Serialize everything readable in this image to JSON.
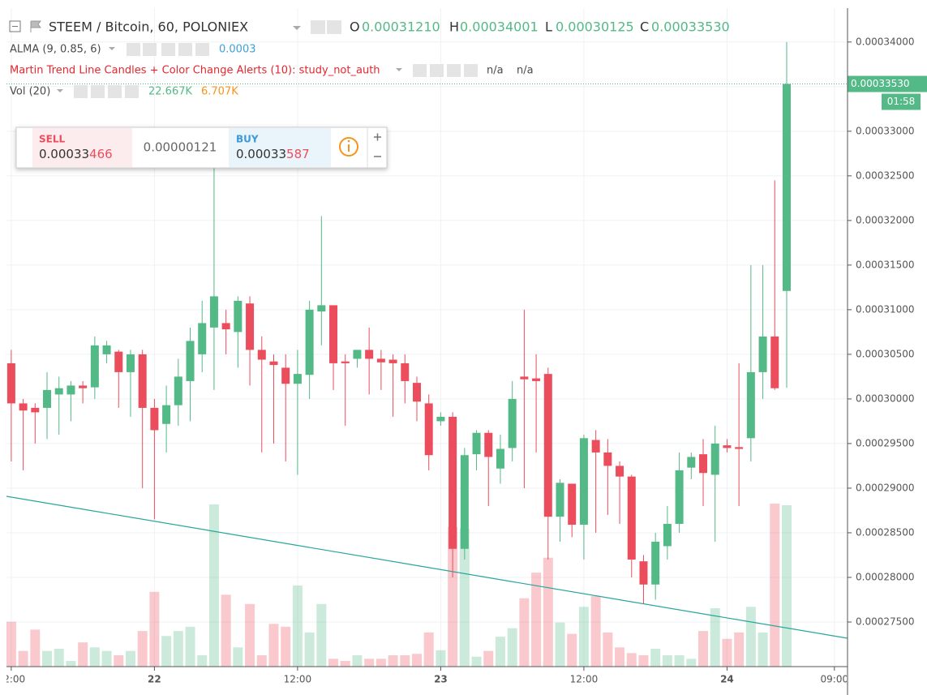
{
  "header": {
    "title": "STEEM / Bitcoin, 60, POLONIEX",
    "open_label": "O",
    "open": "0.00031210",
    "high_label": "H",
    "high": "0.00034001",
    "low_label": "L",
    "low": "0.00030125",
    "close_label": "C",
    "close": "0.00033530"
  },
  "indicators": [
    {
      "name": "ALMA (9, 0.85, 6)",
      "values": [
        "0.0003"
      ]
    },
    {
      "name": "Martin Trend Line Candles + Color Change Alerts (10): study_not_auth",
      "values": [
        "n/a",
        "n/a"
      ]
    },
    {
      "name": "Vol (20)",
      "values": [
        "22.667K",
        "6.707K"
      ]
    }
  ],
  "order_widget": {
    "sell_label": "SELL",
    "sell_price": [
      "0.00033",
      "466"
    ],
    "spread": "0.00000121",
    "buy_label": "BUY",
    "buy_price": [
      "0.00033",
      "587"
    ]
  },
  "price_tag": "0.00033530",
  "countdown": "01:58",
  "chart_data": {
    "type": "candlestick",
    "up_color": "#53b987",
    "down_color": "#eb4d5c",
    "grid": true,
    "x": [
      -12,
      -11,
      -10,
      -9,
      -8,
      -7,
      -6,
      -5,
      -4,
      -3,
      -2,
      -1,
      0,
      1,
      2,
      3,
      4,
      5,
      6,
      7,
      8,
      9,
      10,
      11,
      12,
      13,
      14,
      15,
      16,
      17,
      18,
      19,
      20,
      21,
      22,
      23,
      24,
      25,
      26,
      27,
      28,
      29,
      30,
      31,
      32,
      33,
      34,
      35,
      36,
      37,
      38,
      39,
      40,
      41,
      42,
      43,
      44,
      45,
      46,
      47,
      48,
      49,
      50,
      51,
      52,
      53
    ],
    "open": [
      0.000304,
      0.0002995,
      0.000299,
      0.000299,
      0.0003005,
      0.0003005,
      0.0003015,
      0.0003013,
      0.000305,
      0.0003053,
      0.000303,
      0.000305,
      0.000299,
      0.0002972,
      0.0002993,
      0.000302,
      0.000305,
      0.000308,
      0.0003085,
      0.0003075,
      0.0003107,
      0.0003055,
      0.0003042,
      0.0003035,
      0.0003017,
      0.0003027,
      0.0003098,
      0.0003105,
      0.0003042,
      0.0003045,
      0.0003055,
      0.0003045,
      0.0003044,
      0.000304,
      0.0003018,
      0.0002995,
      0.0002975,
      0.000298,
      0.0002832,
      0.0002938,
      0.0002962,
      0.0002922,
      0.0002945,
      0.0003025,
      0.0003023,
      0.0003028,
      0.0002868,
      0.0002905,
      0.0002859,
      0.0002954,
      0.000294,
      0.0002925,
      0.0002913,
      0.0002818,
      0.0002792,
      0.0002835,
      0.000286,
      0.0002923,
      0.0002938,
      0.0002915,
      0.0002948,
      0.0002946,
      0.0002956,
      0.000303,
      0.000307,
      0.0003121
    ],
    "high": [
      0.0003055,
      0.0003,
      0.0002995,
      0.000303,
      0.0003025,
      0.000302,
      0.000302,
      0.000307,
      0.0003065,
      0.0003055,
      0.0003055,
      0.0003055,
      0.0003,
      0.0003015,
      0.0003045,
      0.000308,
      0.000311,
      0.000326,
      0.00031,
      0.0003115,
      0.0003115,
      0.000307,
      0.000305,
      0.000305,
      0.0003055,
      0.000311,
      0.0003205,
      0.0003105,
      0.000305,
      0.0003055,
      0.000308,
      0.0003055,
      0.000305,
      0.000305,
      0.0003025,
      0.0003005,
      0.0002985,
      0.0002985,
      0.0002945,
      0.0002965,
      0.0002965,
      0.000296,
      0.000302,
      0.00031,
      0.000305,
      0.0003035,
      0.000291,
      0.0002905,
      0.000296,
      0.0002965,
      0.0002955,
      0.000293,
      0.0002915,
      0.0002825,
      0.000285,
      0.000288,
      0.000294,
      0.000294,
      0.0002955,
      0.000297,
      0.0002955,
      0.000304,
      0.000315,
      0.000315,
      0.0003245,
      0.00034001
    ],
    "low": [
      0.000293,
      0.000292,
      0.000295,
      0.0002955,
      0.000296,
      0.0002975,
      0.0002995,
      0.0003,
      0.000304,
      0.000299,
      0.000298,
      0.00029,
      0.0002865,
      0.000294,
      0.000297,
      0.0002975,
      0.000303,
      0.000301,
      0.000305,
      0.0003035,
      0.0003015,
      0.000294,
      0.000295,
      0.000293,
      0.0002915,
      0.0003,
      0.000306,
      0.000301,
      0.000297,
      0.0003035,
      0.0003005,
      0.000301,
      0.000298,
      0.0002995,
      0.0002975,
      0.000292,
      0.000297,
      0.00028,
      0.000282,
      0.000292,
      0.000288,
      0.0002905,
      0.000293,
      0.00029,
      0.000294,
      0.000282,
      0.000284,
      0.0002845,
      0.000282,
      0.000285,
      0.000287,
      0.000286,
      0.00028,
      0.000277,
      0.0002775,
      0.000282,
      0.000285,
      0.000291,
      0.000288,
      0.000284,
      0.000294,
      0.000288,
      0.000293,
      0.0003,
      0.000301,
      0.00030125
    ],
    "close": [
      0.0002995,
      0.0002987,
      0.0002985,
      0.000301,
      0.0003012,
      0.0003015,
      0.0003012,
      0.000306,
      0.000306,
      0.000303,
      0.000305,
      0.000299,
      0.0002965,
      0.0002993,
      0.0003025,
      0.0003065,
      0.0003085,
      0.0003115,
      0.0003078,
      0.000311,
      0.0003055,
      0.0003044,
      0.0003038,
      0.0003017,
      0.0003028,
      0.00031,
      0.0003105,
      0.000304,
      0.000304,
      0.0003055,
      0.0003045,
      0.0003041,
      0.000304,
      0.000302,
      0.0002997,
      0.0002937,
      0.000298,
      0.0002832,
      0.0002937,
      0.0002962,
      0.0002935,
      0.0002944,
      0.0003,
      0.0003022,
      0.000302,
      0.0002868,
      0.0002906,
      0.0002859,
      0.0002956,
      0.000294,
      0.0002925,
      0.0002913,
      0.000282,
      0.0002792,
      0.000284,
      0.000286,
      0.000292,
      0.0002935,
      0.0002917,
      0.000295,
      0.0002945,
      0.0002944,
      0.000303,
      0.000307,
      0.0003012,
      0.0003353
    ],
    "volume": [
      6.3,
      2.2,
      5.2,
      2.2,
      2.5,
      0.8,
      3.4,
      2.7,
      2.2,
      1.6,
      2.2,
      5.0,
      10.5,
      4.3,
      5.0,
      5.6,
      1.6,
      22.8,
      10.1,
      2.7,
      8.8,
      1.6,
      6.0,
      5.6,
      11.4,
      4.8,
      8.8,
      1.1,
      0.8,
      1.6,
      1.1,
      1.1,
      1.6,
      1.6,
      1.8,
      4.8,
      2.3,
      19.6,
      19.4,
      1.4,
      2.2,
      4.2,
      5.4,
      9.6,
      13.2,
      15.3,
      6.2,
      4.6,
      8.4,
      9.9,
      4.8,
      2.7,
      1.9,
      1.6,
      2.5,
      1.6,
      1.6,
      1.1,
      5.0,
      8.2,
      3.9,
      4.8,
      8.4,
      4.8,
      22.9,
      22.667
    ],
    "volume_ylim": [
      0,
      92.5
    ],
    "trend_line": {
      "color": "#26a69a",
      "x": [
        -12.4,
        58.1
      ],
      "values": [
        0.00028909,
        0.00027318
      ]
    },
    "xlim": [
      -12.4,
      58.1
    ],
    "xticks": [
      {
        "value": -12,
        "label": "12:00"
      },
      {
        "value": 0,
        "label": "22"
      },
      {
        "value": 12,
        "label": "12:00"
      },
      {
        "value": 24,
        "label": "23"
      },
      {
        "value": 36,
        "label": "12:00"
      },
      {
        "value": 48,
        "label": "24"
      },
      {
        "value": 57,
        "label": "09:00"
      }
    ],
    "ylim": [
      0.00027,
      0.0003438
    ],
    "yticks": [
      {
        "value": 0.00034,
        "label": "0.00034000"
      },
      {
        "value": 0.000335,
        "label": "0.00033500"
      },
      {
        "value": 0.00033,
        "label": "0.00033000"
      },
      {
        "value": 0.000325,
        "label": "0.00032500"
      },
      {
        "value": 0.00032,
        "label": "0.00032000"
      },
      {
        "value": 0.000315,
        "label": "0.00031500"
      },
      {
        "value": 0.00031,
        "label": "0.00031000"
      },
      {
        "value": 0.000305,
        "label": "0.00030500"
      },
      {
        "value": 0.0003,
        "label": "0.00030000"
      },
      {
        "value": 0.000295,
        "label": "0.00029500"
      },
      {
        "value": 0.00029,
        "label": "0.00029000"
      },
      {
        "value": 0.000285,
        "label": "0.00028500"
      },
      {
        "value": 0.00028,
        "label": "0.00028000"
      },
      {
        "value": 0.000275,
        "label": "0.00027500"
      }
    ]
  }
}
